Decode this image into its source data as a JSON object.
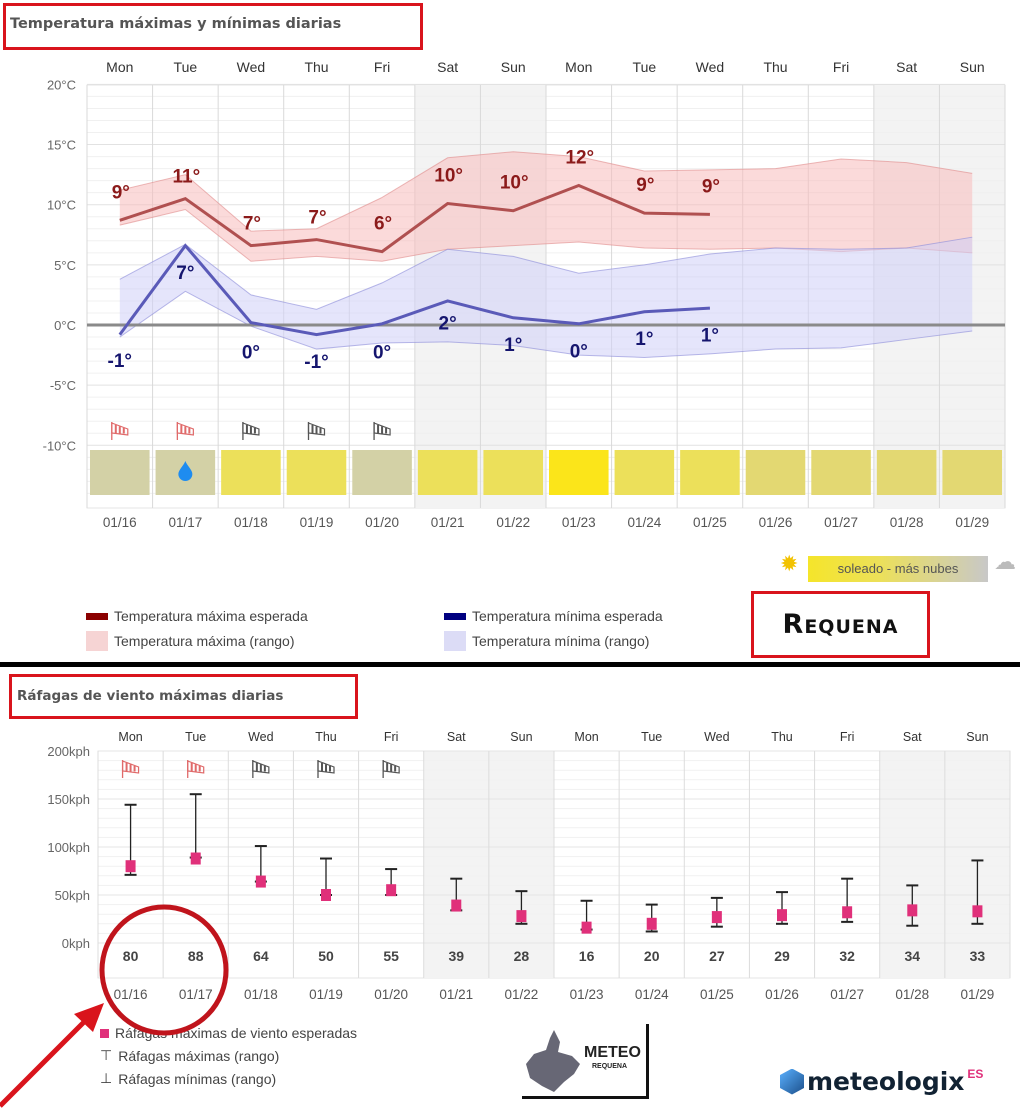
{
  "colors": {
    "max_line": "#b05050",
    "max_band": "#f6c8c8",
    "min_line": "#5a5ab8",
    "min_band": "#d8d8f6",
    "wind_marker": "#e0307a",
    "annotation": "#d9141c"
  },
  "chart_data": [
    {
      "type": "line",
      "title": "Temperatura máximas y mínimas diarias",
      "ylim": [
        -10,
        20
      ],
      "yticks": [
        "20°C",
        "15°C",
        "10°C",
        "5°C",
        "0°C",
        "-5°C",
        "-10°C"
      ],
      "ytick_values": [
        20,
        15,
        10,
        5,
        0,
        -5,
        -10
      ],
      "days": [
        "Mon",
        "Tue",
        "Wed",
        "Thu",
        "Fri",
        "Sat",
        "Sun",
        "Mon",
        "Tue",
        "Wed",
        "Thu",
        "Fri",
        "Sat",
        "Sun"
      ],
      "dates": [
        "01/16",
        "01/17",
        "01/18",
        "01/19",
        "01/20",
        "01/21",
        "01/22",
        "01/23",
        "01/24",
        "01/25",
        "01/26",
        "01/27",
        "01/28",
        "01/29"
      ],
      "weekend": [
        5,
        6,
        12,
        13
      ],
      "max_expected": [
        8.7,
        10.5,
        6.6,
        7.1,
        6.1,
        10.1,
        9.5,
        11.6,
        9.3,
        9.2
      ],
      "max_labels": [
        "9°",
        "11°",
        "7°",
        "7°",
        "6°",
        "10°",
        "10°",
        "12°",
        "9°",
        "9°"
      ],
      "max_range_high": [
        11.2,
        12.5,
        7.8,
        8.0,
        10.6,
        13.9,
        14.4,
        14.0,
        12.8,
        12.9,
        13.0,
        13.8,
        13.5,
        12.6
      ],
      "max_range_low": [
        8.3,
        9.6,
        5.3,
        5.7,
        5.3,
        6.3,
        6.6,
        6.9,
        6.4,
        6.3,
        6.4,
        6.1,
        6.4,
        6.0
      ],
      "min_expected": [
        -0.8,
        6.6,
        0.2,
        -0.8,
        0.1,
        2.0,
        0.6,
        0.1,
        1.1,
        1.4
      ],
      "min_labels": [
        "-1°",
        "7°",
        "0°",
        "-1°",
        "0°",
        "2°",
        "1°",
        "0°",
        "1°",
        "1°"
      ],
      "min_range_high": [
        3.8,
        6.7,
        2.5,
        1.3,
        3.5,
        6.3,
        5.7,
        4.3,
        5.0,
        5.9,
        6.4,
        6.3,
        6.4,
        7.3
      ],
      "min_range_low": [
        -1.0,
        2.8,
        -0.1,
        -2.0,
        -1.5,
        -1.4,
        -1.7,
        -2.5,
        -2.7,
        -2.4,
        -2.0,
        -1.9,
        -1.2,
        -0.5
      ],
      "wind_icons": [
        "red",
        "red",
        "gray",
        "gray",
        "gray"
      ],
      "sky_colors": [
        "#d3d1a6",
        "#d3d1a6",
        "#ece05a",
        "#ece05a",
        "#d3d1a6",
        "#ece05a",
        "#ece05a",
        "#fbe51a",
        "#ece05a",
        "#ece05a",
        "#e3d872",
        "#e3d872",
        "#e3d872",
        "#e3d872"
      ],
      "rain_days": [
        1
      ],
      "legend": {
        "max_expected": "Temperatura máxima esperada",
        "max_range": "Temperatura máxima (rango)",
        "min_expected": "Temperatura mínima esperada",
        "min_range": "Temperatura mínima (rango)"
      },
      "sky_scale": "soleado - más nubes"
    },
    {
      "type": "bar",
      "title": "Ráfagas de viento máximas diarias",
      "ylim": [
        0,
        200
      ],
      "yticks": [
        "200kph",
        "150kph",
        "100kph",
        "50kph",
        "0kph"
      ],
      "ytick_values": [
        200,
        150,
        100,
        50,
        0
      ],
      "days": [
        "Mon",
        "Tue",
        "Wed",
        "Thu",
        "Fri",
        "Sat",
        "Sun",
        "Mon",
        "Tue",
        "Wed",
        "Thu",
        "Fri",
        "Sat",
        "Sun"
      ],
      "dates": [
        "01/16",
        "01/17",
        "01/18",
        "01/19",
        "01/20",
        "01/21",
        "01/22",
        "01/23",
        "01/24",
        "01/25",
        "01/26",
        "01/27",
        "01/28",
        "01/29"
      ],
      "weekend": [
        5,
        6,
        12,
        13
      ],
      "values": [
        80,
        88,
        64,
        50,
        55,
        39,
        28,
        16,
        20,
        27,
        29,
        32,
        34,
        33
      ],
      "range_max": [
        144,
        155,
        101,
        88,
        77,
        67,
        54,
        44,
        40,
        47,
        53,
        67,
        60,
        86
      ],
      "range_min": [
        71,
        89,
        64,
        50,
        50,
        34,
        20,
        14,
        12,
        17,
        20,
        22,
        18,
        20
      ],
      "wind_icons": [
        "red",
        "red",
        "gray",
        "gray",
        "gray"
      ],
      "legend": {
        "expected": "Ráfagas máximas de viento esperadas",
        "max_range": "Ráfagas máximas (rango)",
        "min_range": "Ráfagas mínimas (rango)"
      }
    }
  ],
  "location": "Requena",
  "logos": {
    "meteo": "METEO",
    "meteo_sub": "REQUENA",
    "meteologix": "meteologix",
    "meteologix_sup": "ES"
  }
}
